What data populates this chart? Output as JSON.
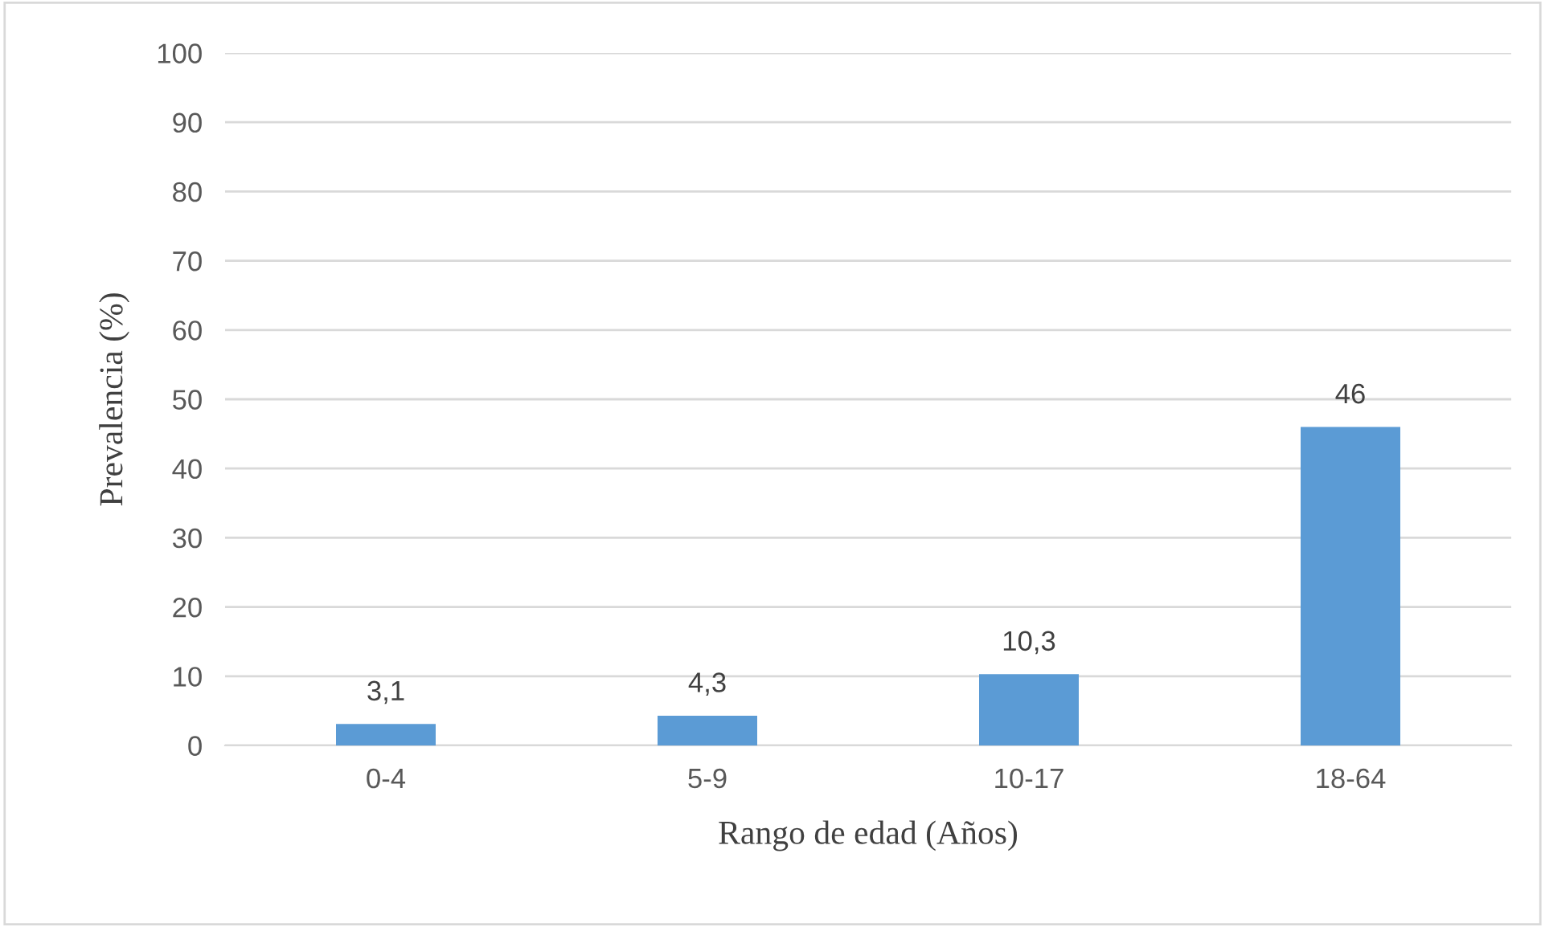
{
  "chart_data": {
    "type": "bar",
    "xlabel": "Rango de edad (Años)",
    "ylabel": "Prevalencia (%)",
    "categories": [
      "0-4",
      "5-9",
      "10-17",
      "18-64"
    ],
    "values": [
      3.1,
      4.3,
      10.3,
      46
    ],
    "value_labels": [
      "3,1",
      "4,3",
      "10,3",
      "46"
    ],
    "color": "#5b9bd5",
    "ylim": [
      0,
      100
    ],
    "yticks": [
      0,
      10,
      20,
      30,
      40,
      50,
      60,
      70,
      80,
      90,
      100
    ],
    "grid": "y",
    "legend": false
  }
}
